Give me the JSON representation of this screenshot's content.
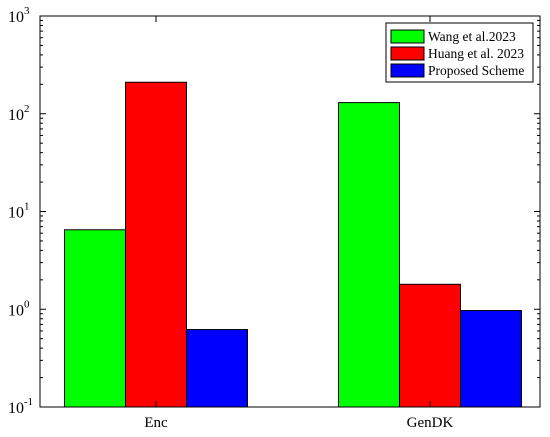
{
  "chart_data": {
    "type": "bar",
    "y_scale": "log",
    "ylim": [
      0.1,
      1000
    ],
    "categories": [
      "Enc",
      "GenDK"
    ],
    "y_ticks": [
      {
        "base": "10",
        "exp": "-1",
        "value": 0.1
      },
      {
        "base": "10",
        "exp": "0",
        "value": 1
      },
      {
        "base": "10",
        "exp": "1",
        "value": 10
      },
      {
        "base": "10",
        "exp": "2",
        "value": 100
      },
      {
        "base": "10",
        "exp": "3",
        "value": 1000
      }
    ],
    "series": [
      {
        "name": "Wang et al.2023",
        "color": "#00ff00",
        "values": [
          6.5,
          130
        ]
      },
      {
        "name": "Huang et al. 2023",
        "color": "#ff0000",
        "values": [
          210,
          1.8
        ]
      },
      {
        "name": "Proposed Scheme",
        "color": "#0000ff",
        "values": [
          0.62,
          0.97
        ]
      }
    ],
    "legend_position": "top-right",
    "grid": false
  }
}
